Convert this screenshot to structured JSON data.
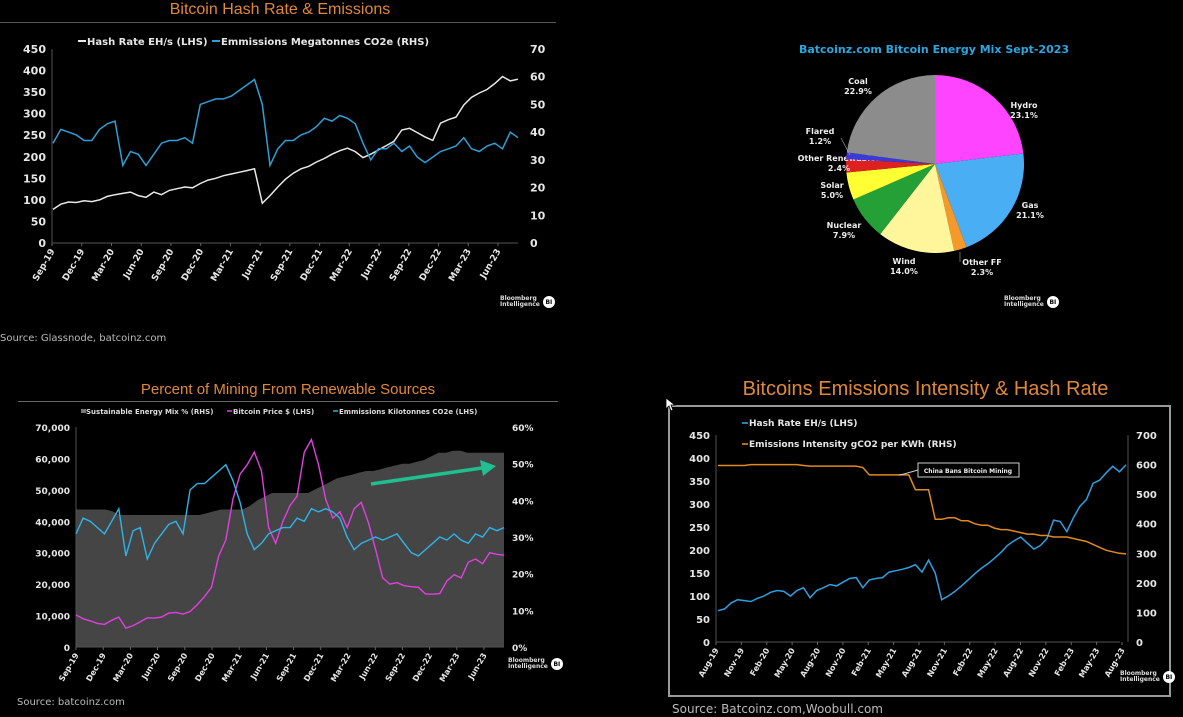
{
  "branding": {
    "line1": "Bloomberg",
    "line2": "Intelligence",
    "badge": "BI"
  },
  "chart_data": [
    {
      "id": "hashrate_emissions",
      "type": "line",
      "title": "Bitcoin Hash Rate & Emissions",
      "source": "Source: Glassnode, batcoinz.com",
      "xlabel": "",
      "ylabel": "",
      "x_ticks": [
        "Sep-19",
        "Dec-19",
        "Mar-20",
        "Jun-20",
        "Sep-20",
        "Dec-20",
        "Mar-21",
        "Jun-21",
        "Sep-21",
        "Dec-21",
        "Mar-22",
        "Jun-22",
        "Sep-22",
        "Dec-22",
        "Mar-23",
        "Jun-23"
      ],
      "y_left": {
        "range": [
          0,
          450
        ],
        "ticks": [
          "0",
          "50",
          "100",
          "150",
          "200",
          "250",
          "300",
          "350",
          "400",
          "450"
        ]
      },
      "y_right": {
        "range": [
          0,
          70
        ],
        "ticks": [
          "0",
          "10",
          "20",
          "30",
          "40",
          "50",
          "60",
          "70"
        ]
      },
      "series": [
        {
          "name": "Hash Rate EH/s (LHS)",
          "axis": "left",
          "color": "#e8e8e8",
          "values": [
            78,
            90,
            95,
            94,
            98,
            96,
            100,
            108,
            112,
            115,
            118,
            110,
            106,
            118,
            112,
            122,
            126,
            130,
            128,
            138,
            146,
            150,
            156,
            160,
            164,
            168,
            172,
            92,
            110,
            130,
            148,
            162,
            172,
            178,
            188,
            196,
            206,
            214,
            220,
            212,
            198,
            206,
            216,
            226,
            236,
            262,
            266,
            256,
            246,
            238,
            278,
            286,
            292,
            320,
            338,
            348,
            356,
            370,
            386,
            376,
            380
          ]
        },
        {
          "name": "Emmissions Megatonnes CO2e (RHS)",
          "axis": "right",
          "color": "#2f9fd6",
          "values": [
            36,
            41,
            40,
            39,
            37,
            37,
            41,
            43,
            44,
            28,
            33,
            32,
            28,
            32,
            36,
            37,
            37,
            38,
            36,
            50,
            51,
            52,
            52,
            53,
            55,
            57,
            59,
            50,
            28,
            34,
            37,
            37,
            39,
            40,
            42,
            45,
            44,
            46,
            45,
            43,
            36,
            30,
            34,
            34,
            36,
            33,
            35,
            31,
            29,
            31,
            33,
            34,
            35,
            38,
            34,
            33,
            35,
            36,
            34,
            40,
            38
          ]
        }
      ]
    },
    {
      "id": "energy_mix",
      "type": "pie",
      "title": "Batcoinz.com Bitcoin Energy Mix Sept-2023",
      "slices": [
        {
          "label": "Hydro",
          "value": 23.1,
          "display": "23.1%",
          "color": "#ff44ff"
        },
        {
          "label": "Gas",
          "value": 21.1,
          "display": "21.1%",
          "color": "#4aaef5"
        },
        {
          "label": "Other FF",
          "value": 2.3,
          "display": "2.3%",
          "color": "#f59a2a"
        },
        {
          "label": "Wind",
          "value": 14.0,
          "display": "14.0%",
          "color": "#fff59a"
        },
        {
          "label": "Nuclear",
          "value": 7.9,
          "display": "7.9%",
          "color": "#24a036"
        },
        {
          "label": "Solar",
          "value": 5.0,
          "display": "5.0%",
          "color": "#ffff33"
        },
        {
          "label": "Other Renewables",
          "value": 2.4,
          "display": "2.4%",
          "color": "#dd2020"
        },
        {
          "label": "Flared",
          "value": 1.2,
          "display": "1.2%",
          "color": "#3a3ad8"
        },
        {
          "label": "Coal",
          "value": 22.9,
          "display": "22.9%",
          "color": "#8c8c8c"
        }
      ]
    },
    {
      "id": "renewable_pct",
      "type": "area",
      "title": "Percent of Mining From Renewable Sources",
      "source": "Source: batcoinz.com",
      "x_ticks": [
        "Sep-19",
        "Dec-19",
        "Mar-20",
        "Jun-20",
        "Sep-20",
        "Dec-20",
        "Mar-21",
        "Jun-21",
        "Sep-21",
        "Dec-21",
        "Mar-22",
        "Jun-22",
        "Sep-22",
        "Dec-22",
        "Mar-23",
        "Jun-23"
      ],
      "y_left": {
        "range": [
          0,
          70000
        ],
        "ticks": [
          "0",
          "10,000",
          "20,000",
          "30,000",
          "40,000",
          "50,000",
          "60,000",
          "70,000"
        ]
      },
      "y_right": {
        "range": [
          0,
          60
        ],
        "ticks": [
          "0%",
          "10%",
          "20%",
          "30%",
          "40%",
          "50%",
          "60%"
        ]
      },
      "annotation": {
        "type": "arrow",
        "color": "#1fbf8f",
        "meaning": "rising renewable share"
      },
      "series": [
        {
          "name": "Sustainable Energy Mix % (RHS)",
          "axis": "right",
          "kind": "area",
          "color": "#454545",
          "values": [
            37.5,
            37.5,
            37.5,
            37.5,
            37.5,
            37,
            36,
            36,
            36,
            36,
            36,
            36,
            36,
            36,
            36,
            36,
            36,
            36,
            36.5,
            37,
            37.5,
            37.5,
            37.5,
            37.5,
            38.5,
            40,
            41,
            42,
            42,
            42,
            42,
            42,
            42,
            43,
            44,
            45,
            46,
            46.5,
            47,
            47.5,
            48,
            48,
            48.5,
            49,
            49.5,
            50,
            50,
            50.5,
            51,
            52,
            53,
            53,
            53.5,
            53.5,
            53,
            53,
            53,
            53,
            53,
            53
          ]
        },
        {
          "name": "Bitcoin Price $ (LHS)",
          "axis": "left",
          "kind": "line",
          "color": "#e040e0",
          "values": [
            10200,
            9000,
            8300,
            7500,
            7200,
            8500,
            9500,
            6000,
            6800,
            8000,
            9300,
            9200,
            9500,
            10800,
            11000,
            10500,
            11300,
            13500,
            16000,
            19000,
            29000,
            34000,
            47000,
            55000,
            58000,
            62000,
            56000,
            38000,
            33000,
            40000,
            45000,
            48000,
            62000,
            66000,
            58000,
            47000,
            41000,
            43000,
            38000,
            44000,
            46000,
            39500,
            31000,
            22000,
            20000,
            20500,
            19500,
            19200,
            19000,
            16900,
            16800,
            17000,
            21000,
            23000,
            22000,
            27000,
            28000,
            26500,
            30000,
            29500,
            29200
          ]
        },
        {
          "name": "Emmissions Kilotonnes CO2e (LHS)",
          "axis": "left",
          "kind": "line",
          "color": "#2fb3e8",
          "values": [
            36000,
            41000,
            40000,
            38000,
            36000,
            40000,
            44000,
            29000,
            37000,
            38000,
            28000,
            33000,
            36000,
            39000,
            40000,
            36000,
            50000,
            52000,
            52000,
            54000,
            56000,
            58000,
            53000,
            46000,
            36000,
            31000,
            33000,
            36000,
            37000,
            38000,
            38000,
            41000,
            40000,
            44000,
            43000,
            44000,
            43000,
            41000,
            35000,
            31000,
            33000,
            34000,
            35000,
            34000,
            35000,
            36000,
            33000,
            30000,
            29000,
            31000,
            33000,
            35000,
            34000,
            36000,
            34000,
            33000,
            36000,
            35000,
            38000,
            37000,
            38000
          ]
        }
      ]
    },
    {
      "id": "intensity_hashrate",
      "type": "line",
      "title": "Bitcoins Emissions Intensity & Hash Rate",
      "source": "Source: Batcoinz.com,Woobull.com",
      "x_ticks": [
        "Aug-19",
        "Nov-19",
        "Feb-20",
        "May-20",
        "Aug-20",
        "Nov-20",
        "Feb-21",
        "May-21",
        "Aug-21",
        "Nov-21",
        "Feb-22",
        "May-22",
        "Aug-22",
        "Nov-22",
        "Feb-23",
        "May-23",
        "Aug-23"
      ],
      "y_left": {
        "range": [
          0,
          450
        ],
        "ticks": [
          "0",
          "50",
          "100",
          "150",
          "200",
          "250",
          "300",
          "350",
          "400",
          "450"
        ]
      },
      "y_right": {
        "range": [
          0,
          700
        ],
        "ticks": [
          "0",
          "100",
          "200",
          "300",
          "400",
          "500",
          "600",
          "700"
        ]
      },
      "annotation": {
        "text": "China Bans Bitcoin Mining",
        "at_x_index": 29
      },
      "series": [
        {
          "name": "Hash Rate EH/s (LHS)",
          "axis": "left",
          "color": "#2f9fe0",
          "values": [
            68,
            72,
            85,
            92,
            90,
            88,
            95,
            100,
            108,
            112,
            110,
            100,
            112,
            118,
            96,
            112,
            118,
            125,
            122,
            130,
            138,
            140,
            118,
            135,
            138,
            140,
            152,
            155,
            158,
            162,
            168,
            152,
            178,
            150,
            92,
            100,
            110,
            122,
            135,
            148,
            160,
            170,
            182,
            195,
            210,
            220,
            228,
            215,
            202,
            210,
            225,
            265,
            262,
            240,
            270,
            295,
            310,
            345,
            352,
            368,
            382,
            370,
            385
          ]
        },
        {
          "name": "Emissions Intensity gCO2 per KWh (RHS)",
          "axis": "right",
          "color": "#e08a20",
          "values": [
            597,
            597,
            597,
            597,
            597,
            600,
            600,
            600,
            600,
            600,
            600,
            600,
            600,
            597,
            595,
            595,
            595,
            595,
            595,
            595,
            595,
            595,
            590,
            565,
            565,
            565,
            565,
            565,
            565,
            565,
            515,
            515,
            515,
            415,
            415,
            420,
            420,
            410,
            410,
            400,
            395,
            395,
            385,
            380,
            380,
            375,
            370,
            365,
            365,
            360,
            360,
            355,
            355,
            355,
            350,
            345,
            340,
            330,
            320,
            310,
            305,
            300,
            298
          ]
        }
      ]
    }
  ]
}
